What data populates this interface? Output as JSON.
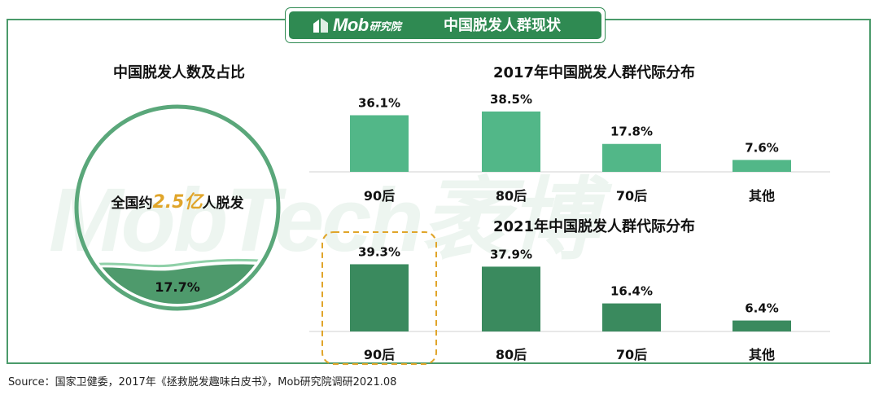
{
  "header": {
    "logo_text": "Mob",
    "logo_sub": "研究院",
    "title": "中国脱发人群现状"
  },
  "watermark": "MobTech袤博",
  "left_panel": {
    "title": "中国脱发人数及占比",
    "circle_prefix": "全国约",
    "circle_number": "2.5亿",
    "circle_suffix": "人脱发",
    "percent_label": "17.7%",
    "percent_value": 17.7
  },
  "colors": {
    "frame": "#4a9a6a",
    "header_bg": "#2f8a52",
    "bar_2017": "#52b788",
    "bar_2021": "#3a8a5e",
    "highlight": "#e0a52a",
    "circle_fill": "#4e9a6c"
  },
  "chart_data": [
    {
      "type": "bar",
      "title": "2017年中国脱发人群代际分布",
      "categories": [
        "90后",
        "80后",
        "70后",
        "其他"
      ],
      "values": [
        36.1,
        38.5,
        17.8,
        7.6
      ],
      "labels": [
        "36.1%",
        "38.5%",
        "17.8%",
        "7.6%"
      ],
      "ylim": [
        0,
        40
      ],
      "grid": false
    },
    {
      "type": "bar",
      "title": "2021年中国脱发人群代际分布",
      "categories": [
        "90后",
        "80后",
        "70后",
        "其他"
      ],
      "values": [
        39.3,
        37.9,
        16.4,
        6.4
      ],
      "labels": [
        "39.3%",
        "37.9%",
        "16.4%",
        "6.4%"
      ],
      "ylim": [
        0,
        40
      ],
      "grid": false,
      "highlight_category": "90后"
    }
  ],
  "source": "Source：国家卫健委，2017年《拯救脱发趣味白皮书》，Mob研究院调研2021.08"
}
